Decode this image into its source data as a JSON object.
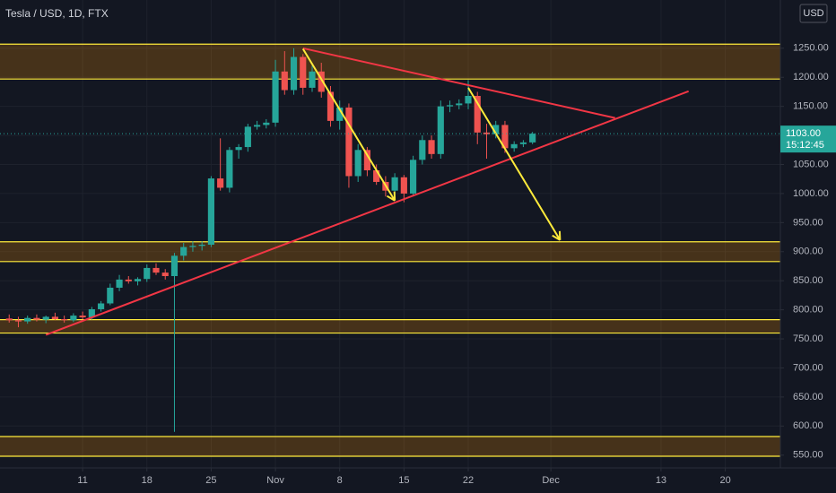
{
  "chart_data": {
    "type": "candlestick",
    "title": "Tesla / USD, 1D, FTX",
    "currency": "USD",
    "up_color": "#26a69a",
    "down_color": "#ef5350",
    "grid": true,
    "x": [
      "Oct 3",
      "Oct 4",
      "Oct 5",
      "Oct 6",
      "Oct 7",
      "Oct 8",
      "Oct 9",
      "Oct 10",
      "Oct 11",
      "Oct 12",
      "Oct 13",
      "Oct 14",
      "Oct 15",
      "Oct 16",
      "Oct 17",
      "Oct 18",
      "Oct 19",
      "Oct 20",
      "Oct 21",
      "Oct 22",
      "Oct 23",
      "Oct 24",
      "Oct 25",
      "Oct 26",
      "Oct 27",
      "Oct 28",
      "Oct 29",
      "Oct 30",
      "Oct 31",
      "Nov 1",
      "Nov 2",
      "Nov 3",
      "Nov 4",
      "Nov 5",
      "Nov 6",
      "Nov 7",
      "Nov 8",
      "Nov 9",
      "Nov 10",
      "Nov 11",
      "Nov 12",
      "Nov 13",
      "Nov 14",
      "Nov 15",
      "Nov 16",
      "Nov 17",
      "Nov 18",
      "Nov 19",
      "Nov 20",
      "Nov 21",
      "Nov 22",
      "Nov 23",
      "Nov 24",
      "Nov 25",
      "Nov 26",
      "Nov 27",
      "Nov 28",
      "Nov 29"
    ],
    "open": [
      785,
      782,
      780,
      786,
      783,
      788,
      784,
      782,
      790,
      787,
      801,
      811,
      838,
      852,
      849,
      853,
      872,
      864,
      858,
      893,
      908,
      910,
      912,
      1026,
      1010,
      1075,
      1080,
      1115,
      1118,
      1122,
      1210,
      1178,
      1235,
      1182,
      1210,
      1175,
      1125,
      1148,
      1030,
      1075,
      1040,
      1020,
      1005,
      1028,
      1000,
      1058,
      1092,
      1068,
      1150,
      1152,
      1155,
      1168,
      1105,
      1102,
      1118,
      1078,
      1085,
      1088
    ],
    "high": [
      792,
      788,
      790,
      792,
      790,
      795,
      790,
      794,
      797,
      805,
      815,
      845,
      860,
      858,
      856,
      878,
      880,
      870,
      898,
      915,
      918,
      918,
      1030,
      1095,
      1080,
      1085,
      1120,
      1125,
      1128,
      1230,
      1245,
      1250,
      1240,
      1220,
      1225,
      1185,
      1160,
      1155,
      1085,
      1080,
      1050,
      1030,
      1035,
      1032,
      1065,
      1100,
      1100,
      1160,
      1160,
      1162,
      1195,
      1175,
      1120,
      1125,
      1125,
      1090,
      1092,
      1106
    ],
    "low": [
      778,
      770,
      776,
      780,
      777,
      782,
      778,
      779,
      784,
      783,
      797,
      808,
      832,
      845,
      842,
      848,
      860,
      852,
      590,
      885,
      900,
      902,
      908,
      1005,
      1002,
      1060,
      1072,
      1110,
      1112,
      1115,
      1170,
      1170,
      1170,
      1175,
      1165,
      1115,
      1110,
      1010,
      1020,
      1030,
      1015,
      995,
      998,
      985,
      995,
      1050,
      1060,
      1060,
      1140,
      1145,
      1145,
      1085,
      1060,
      1095,
      1070,
      1072,
      1080,
      1085
    ],
    "close": [
      782,
      780,
      786,
      783,
      788,
      784,
      782,
      790,
      787,
      801,
      811,
      838,
      852,
      849,
      853,
      872,
      864,
      858,
      893,
      908,
      910,
      912,
      1026,
      1010,
      1075,
      1080,
      1115,
      1118,
      1122,
      1210,
      1178,
      1235,
      1182,
      1210,
      1175,
      1125,
      1148,
      1030,
      1075,
      1040,
      1020,
      1005,
      1028,
      1000,
      1058,
      1092,
      1068,
      1150,
      1152,
      1155,
      1168,
      1105,
      1102,
      1118,
      1078,
      1085,
      1088,
      1103
    ],
    "xlim": [
      "Oct 2",
      "Dec 26"
    ],
    "xticks": [
      {
        "value": "Oct 11",
        "label": "11"
      },
      {
        "value": "Oct 18",
        "label": "18"
      },
      {
        "value": "Oct 25",
        "label": "25"
      },
      {
        "value": "Nov 1",
        "label": "Nov"
      },
      {
        "value": "Nov 8",
        "label": "8"
      },
      {
        "value": "Nov 15",
        "label": "15"
      },
      {
        "value": "Nov 22",
        "label": "22"
      },
      {
        "value": "Dec 1",
        "label": "Dec"
      },
      {
        "value": "Dec 13",
        "label": "13"
      },
      {
        "value": "Dec 20",
        "label": "20"
      }
    ],
    "ylim": [
      528,
      1333
    ],
    "yticks": [
      {
        "value": 550,
        "label": "550.00"
      },
      {
        "value": 600,
        "label": "600.00"
      },
      {
        "value": 650,
        "label": "650.00"
      },
      {
        "value": 700,
        "label": "700.00"
      },
      {
        "value": 750,
        "label": "750.00"
      },
      {
        "value": 800,
        "label": "800.00"
      },
      {
        "value": 850,
        "label": "850.00"
      },
      {
        "value": 900,
        "label": "900.00"
      },
      {
        "value": 950,
        "label": "950.00"
      },
      {
        "value": 1000,
        "label": "1000.00"
      },
      {
        "value": 1050,
        "label": "1050.00"
      },
      {
        "value": 1100,
        "label": "1100.00"
      },
      {
        "value": 1150,
        "label": "1150.00"
      },
      {
        "value": 1200,
        "label": "1200.00"
      },
      {
        "value": 1250,
        "label": "1250.00"
      }
    ],
    "last_price": {
      "value": 1103,
      "label": "1103.00"
    },
    "countdown": "15:12:45",
    "zones": [
      {
        "top": 1257,
        "bottom": 1197
      },
      {
        "top": 917,
        "bottom": 883
      },
      {
        "top": 783,
        "bottom": 760
      },
      {
        "top": 582,
        "bottom": 548
      }
    ],
    "trendlines": [
      {
        "color": "#f23645",
        "x": [
          "Nov 4",
          "Dec 8"
        ],
        "y": [
          1250,
          1130
        ]
      },
      {
        "color": "#f23645",
        "x": [
          "Oct 7",
          "Dec 16"
        ],
        "y": [
          757,
          1176
        ]
      }
    ],
    "arrows": [
      {
        "color": "#ffeb3b",
        "x": [
          "Nov 4",
          "Nov 14"
        ],
        "y": [
          1249,
          988
        ]
      },
      {
        "color": "#ffeb3b",
        "x": [
          "Nov 22",
          "Dec 2"
        ],
        "y": [
          1182,
          920
        ]
      }
    ]
  }
}
